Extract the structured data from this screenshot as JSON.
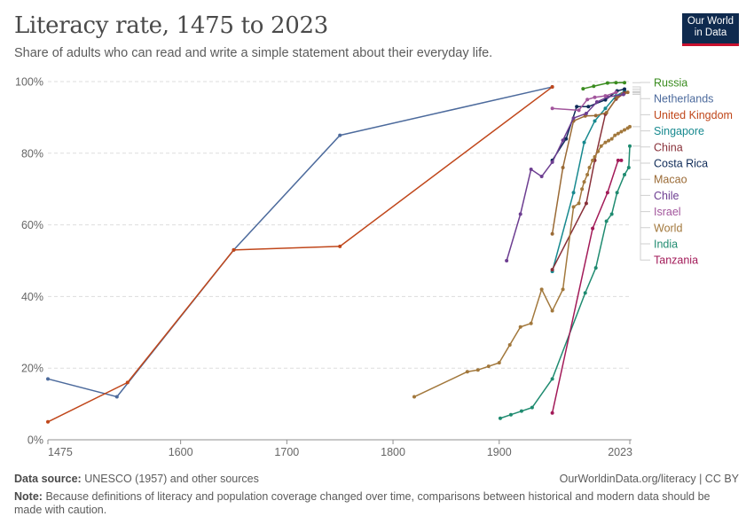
{
  "header": {
    "title": "Literacy rate, 1475 to 2023",
    "subtitle": "Share of adults who can read and write a simple statement about their everyday life.",
    "logo_line1": "Our World",
    "logo_line2": "in Data"
  },
  "footer": {
    "source_label": "Data source:",
    "source_text": "UNESCO (1957) and other sources",
    "url_text": "OurWorldinData.org/literacy | CC BY",
    "note_label": "Note:",
    "note_text": "Because definitions of literacy and population coverage changed over time, comparisons between historical and modern data should be made with caution."
  },
  "chart_data": {
    "type": "line",
    "title": "Literacy rate, 1475 to 2023",
    "xlim": [
      1475,
      2023
    ],
    "ylim": [
      0,
      100
    ],
    "x_ticks": [
      1475,
      1600,
      1700,
      1800,
      1900,
      2023
    ],
    "y_ticks": [
      0,
      20,
      40,
      60,
      80,
      100
    ],
    "y_tick_labels": [
      "0%",
      "20%",
      "40%",
      "60%",
      "80%",
      "100%"
    ],
    "grid": "horizontal dashed",
    "legend": "right",
    "series": [
      {
        "name": "Russia",
        "color": "#3a8c1f",
        "points": [
          [
            1979,
            98.0
          ],
          [
            1989,
            98.7
          ],
          [
            2002,
            99.6
          ],
          [
            2010,
            99.7
          ],
          [
            2018,
            99.7
          ]
        ]
      },
      {
        "name": "Netherlands",
        "color": "#4c6a9c",
        "points": [
          [
            1475,
            17
          ],
          [
            1540,
            12
          ],
          [
            1650,
            53
          ],
          [
            1750,
            85
          ],
          [
            1950,
            98.5
          ]
        ]
      },
      {
        "name": "United Kingdom",
        "color": "#c0471b",
        "points": [
          [
            1475,
            5
          ],
          [
            1550,
            16
          ],
          [
            1650,
            53
          ],
          [
            1750,
            54
          ],
          [
            1950,
            98.5
          ]
        ]
      },
      {
        "name": "Singapore",
        "color": "#17898f",
        "points": [
          [
            1950,
            47
          ],
          [
            1970,
            69
          ],
          [
            1980,
            83
          ],
          [
            1990,
            89
          ],
          [
            2000,
            92.5
          ],
          [
            2010,
            96
          ],
          [
            2018,
            97.3
          ]
        ]
      },
      {
        "name": "China",
        "color": "#883039",
        "points": [
          [
            1950,
            47.5
          ],
          [
            1982,
            66
          ],
          [
            1990,
            78
          ],
          [
            2000,
            90.9
          ],
          [
            2010,
            95.1
          ],
          [
            2018,
            96.8
          ]
        ]
      },
      {
        "name": "Costa Rica",
        "color": "#0e2a57",
        "points": [
          [
            1950,
            78
          ],
          [
            1963,
            84
          ],
          [
            1973,
            93
          ],
          [
            1984,
            93
          ],
          [
            2000,
            94.9
          ],
          [
            2011,
            97.4
          ],
          [
            2018,
            97.9
          ]
        ]
      },
      {
        "name": "Macao",
        "color": "#9a6a35",
        "points": [
          [
            1950,
            57.5
          ],
          [
            1960,
            76
          ],
          [
            1970,
            89
          ],
          [
            1981,
            90.4
          ],
          [
            1991,
            90.5
          ],
          [
            2001,
            91.3
          ],
          [
            2011,
            95.6
          ],
          [
            2016,
            96.5
          ],
          [
            2021,
            97.0
          ]
        ]
      },
      {
        "name": "Chile",
        "color": "#6d3e91",
        "points": [
          [
            1907,
            50
          ],
          [
            1920,
            63
          ],
          [
            1930,
            75.5
          ],
          [
            1940,
            73.5
          ],
          [
            1950,
            77.5
          ],
          [
            1960,
            83.6
          ],
          [
            1970,
            89.8
          ],
          [
            1982,
            91.1
          ],
          [
            1992,
            94.3
          ],
          [
            2002,
            95.7
          ],
          [
            2017,
            96.4
          ]
        ]
      },
      {
        "name": "Israel",
        "color": "#a2559c",
        "points": [
          [
            1950,
            92.5
          ],
          [
            1975,
            92
          ],
          [
            1983,
            95
          ],
          [
            1990,
            95.6
          ],
          [
            2000,
            96
          ],
          [
            2010,
            97
          ]
        ]
      },
      {
        "name": "World",
        "color": "#a2783c",
        "points": [
          [
            1820,
            12
          ],
          [
            1870,
            19
          ],
          [
            1880,
            19.5
          ],
          [
            1890,
            20.5
          ],
          [
            1900,
            21.5
          ],
          [
            1910,
            26.5
          ],
          [
            1920,
            31.5
          ],
          [
            1930,
            32.5
          ],
          [
            1940,
            42
          ],
          [
            1950,
            36
          ],
          [
            1960,
            42
          ],
          [
            1970,
            65
          ],
          [
            1975,
            66
          ],
          [
            1978,
            70
          ],
          [
            1980,
            72
          ],
          [
            1983,
            74
          ],
          [
            1985,
            76
          ],
          [
            1988,
            78
          ],
          [
            1990,
            79
          ],
          [
            1993,
            80.5
          ],
          [
            1996,
            82
          ],
          [
            2000,
            83
          ],
          [
            2003,
            83.5
          ],
          [
            2006,
            84
          ],
          [
            2009,
            85
          ],
          [
            2012,
            85.5
          ],
          [
            2015,
            86
          ],
          [
            2018,
            86.5
          ],
          [
            2021,
            87
          ],
          [
            2023,
            87.4
          ]
        ]
      },
      {
        "name": "India",
        "color": "#1f8b70",
        "points": [
          [
            1901,
            6
          ],
          [
            1911,
            7
          ],
          [
            1921,
            8
          ],
          [
            1931,
            9
          ],
          [
            1950,
            17
          ],
          [
            1981,
            41
          ],
          [
            1991,
            48
          ],
          [
            2001,
            61
          ],
          [
            2006,
            63
          ],
          [
            2011,
            69
          ],
          [
            2018,
            74
          ],
          [
            2022,
            76
          ],
          [
            2023,
            82
          ]
        ]
      },
      {
        "name": "Tanzania",
        "color": "#a21a58",
        "points": [
          [
            1950,
            7.5
          ],
          [
            1988,
            59
          ],
          [
            2002,
            69
          ],
          [
            2012,
            78
          ],
          [
            2015,
            78
          ]
        ]
      }
    ]
  }
}
